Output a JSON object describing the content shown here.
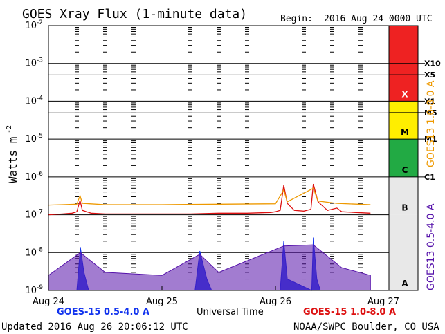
{
  "chart_data": {
    "type": "line",
    "title": "GOES Xray Flux (1-minute data)",
    "begin_label": "Begin:",
    "begin_date": "2016 Aug 24 0000 UTC",
    "xlabel": "Universal Time",
    "ylabel": "Watts m",
    "ylabel_exponent": "-2",
    "yscale": "log",
    "ylim": [
      1e-09,
      0.01
    ],
    "xlim": [
      "2016-08-24 00:00",
      "2016-08-27 00:00"
    ],
    "x_ticks": [
      "Aug 24",
      "Aug 25",
      "Aug 26",
      "Aug 27"
    ],
    "y_ticks": [
      {
        "base": "10",
        "exp": "-2",
        "value": 0.01
      },
      {
        "base": "10",
        "exp": "-3",
        "value": 0.001
      },
      {
        "base": "10",
        "exp": "-4",
        "value": 0.0001
      },
      {
        "base": "10",
        "exp": "-5",
        "value": 1e-05
      },
      {
        "base": "10",
        "exp": "-6",
        "value": 1e-06
      },
      {
        "base": "10",
        "exp": "-7",
        "value": 1e-07
      },
      {
        "base": "10",
        "exp": "-8",
        "value": 1e-08
      },
      {
        "base": "10",
        "exp": "-9",
        "value": 1e-09
      }
    ],
    "flare_thresholds": [
      {
        "label": "X10",
        "value": 0.001
      },
      {
        "label": "X5",
        "value": 0.0005
      },
      {
        "label": "X1",
        "value": 0.0001
      },
      {
        "label": "M5",
        "value": 5e-05
      },
      {
        "label": "M1",
        "value": 1e-05
      },
      {
        "label": "C1",
        "value": 1e-06
      }
    ],
    "flare_classes": [
      {
        "label": "X",
        "from": 0.0001,
        "to": 0.01,
        "color": "#ee2222"
      },
      {
        "label": "M",
        "from": 1e-05,
        "to": 0.0001,
        "color": "#ffee00"
      },
      {
        "label": "C",
        "from": 1e-06,
        "to": 1e-05,
        "color": "#22aa44"
      },
      {
        "label": "B",
        "from": 1e-07,
        "to": 1e-06,
        "color": "#e8e8e8"
      },
      {
        "label": "A",
        "from": 1e-09,
        "to": 1e-07,
        "color": "#e8e8e8"
      }
    ],
    "series": [
      {
        "name": "GOES-15 1.0-8.0 A",
        "color": "#dd1111",
        "points": [
          [
            "2016-08-24 00:00",
            1e-07
          ],
          [
            "2016-08-24 03:00",
            1.05e-07
          ],
          [
            "2016-08-24 05:00",
            1.1e-07
          ],
          [
            "2016-08-24 06:00",
            1.2e-07
          ],
          [
            "2016-08-24 06:40",
            2.4e-07
          ],
          [
            "2016-08-24 07:10",
            1.3e-07
          ],
          [
            "2016-08-24 09:00",
            1.1e-07
          ],
          [
            "2016-08-24 12:00",
            1.05e-07
          ],
          [
            "2016-08-24 18:00",
            1.05e-07
          ],
          [
            "2016-08-25 00:00",
            1.05e-07
          ],
          [
            "2016-08-25 06:00",
            1.05e-07
          ],
          [
            "2016-08-25 12:00",
            1.1e-07
          ],
          [
            "2016-08-25 18:00",
            1.1e-07
          ],
          [
            "2016-08-25 23:00",
            1.15e-07
          ],
          [
            "2016-08-26 00:00",
            1.2e-07
          ],
          [
            "2016-08-26 01:00",
            1.3e-07
          ],
          [
            "2016-08-26 01:45",
            6e-07
          ],
          [
            "2016-08-26 02:30",
            2e-07
          ],
          [
            "2016-08-26 04:00",
            1.3e-07
          ],
          [
            "2016-08-26 06:00",
            1.25e-07
          ],
          [
            "2016-08-26 07:30",
            1.4e-07
          ],
          [
            "2016-08-26 08:00",
            6.5e-07
          ],
          [
            "2016-08-26 09:00",
            2.2e-07
          ],
          [
            "2016-08-26 11:00",
            1.3e-07
          ],
          [
            "2016-08-26 13:00",
            1.5e-07
          ],
          [
            "2016-08-26 14:00",
            1.2e-07
          ],
          [
            "2016-08-26 17:00",
            1.15e-07
          ],
          [
            "2016-08-26 20:06",
            1.1e-07
          ]
        ]
      },
      {
        "name": "GOES13 1.0-8.0 A",
        "color": "#ee9900",
        "points": [
          [
            "2016-08-24 00:00",
            1.8e-07
          ],
          [
            "2016-08-24 03:00",
            1.85e-07
          ],
          [
            "2016-08-24 06:00",
            1.9e-07
          ],
          [
            "2016-08-24 06:40",
            3.2e-07
          ],
          [
            "2016-08-24 07:10",
            2e-07
          ],
          [
            "2016-08-24 12:00",
            1.85e-07
          ],
          [
            "2016-08-25 00:00",
            1.85e-07
          ],
          [
            "2016-08-25 12:00",
            1.9e-07
          ],
          [
            "2016-08-26 00:00",
            1.95e-07
          ],
          [
            "2016-08-26 01:45",
            4.5e-07
          ],
          [
            "2016-08-26 02:30",
            2.2e-07
          ],
          [
            "2016-08-26 08:00",
            5e-07
          ],
          [
            "2016-08-26 09:00",
            2.3e-07
          ],
          [
            "2016-08-26 13:00",
            2e-07
          ],
          [
            "2016-08-26 20:06",
            1.85e-07
          ]
        ]
      },
      {
        "name": "GOES-15 0.5-4.0 A",
        "color": "#1133ee",
        "points": [
          [
            "2016-08-24 06:00",
            1e-09
          ],
          [
            "2016-08-24 06:45",
            1.4e-08
          ],
          [
            "2016-08-24 07:30",
            3e-09
          ],
          [
            "2016-08-24 08:30",
            1e-09
          ],
          [
            "2016-08-25 07:00",
            1e-09
          ],
          [
            "2016-08-25 08:00",
            1.1e-08
          ],
          [
            "2016-08-25 09:30",
            2e-09
          ],
          [
            "2016-08-25 10:30",
            1e-09
          ],
          [
            "2016-08-26 01:00",
            1e-09
          ],
          [
            "2016-08-26 01:45",
            2e-08
          ],
          [
            "2016-08-26 02:30",
            2e-09
          ],
          [
            "2016-08-26 07:40",
            1e-09
          ],
          [
            "2016-08-26 08:00",
            2.5e-08
          ],
          [
            "2016-08-26 08:45",
            2e-09
          ],
          [
            "2016-08-26 09:30",
            1e-09
          ]
        ]
      },
      {
        "name": "GOES13 0.5-4.0 A",
        "color": "#5511aa",
        "points": [
          [
            "2016-08-24 00:00",
            2.5e-09
          ],
          [
            "2016-08-24 06:45",
            1e-08
          ],
          [
            "2016-08-24 12:00",
            3e-09
          ],
          [
            "2016-08-25 00:00",
            2.5e-09
          ],
          [
            "2016-08-25 08:00",
            9e-09
          ],
          [
            "2016-08-25 12:00",
            3e-09
          ],
          [
            "2016-08-26 01:45",
            1.5e-08
          ],
          [
            "2016-08-26 08:00",
            1.6e-08
          ],
          [
            "2016-08-26 14:00",
            4e-09
          ],
          [
            "2016-08-26 20:06",
            2.5e-09
          ]
        ]
      }
    ],
    "legend": {
      "bottom_left": {
        "text": "GOES-15 0.5-4.0 A",
        "color": "#1133ee"
      },
      "bottom_right": {
        "text": "GOES-15 1.0-8.0 A",
        "color": "#dd1111"
      },
      "right_top": {
        "text": "GOES13 1.0-8.0 A",
        "color": "#ee9900"
      },
      "right_bottom": {
        "text": "GOES13 0.5-4.0 A",
        "color": "#5511aa"
      }
    }
  },
  "footer": {
    "updated": "Updated 2016 Aug 26 20:06:12 UTC",
    "source": "NOAA/SWPC Boulder, CO USA"
  }
}
